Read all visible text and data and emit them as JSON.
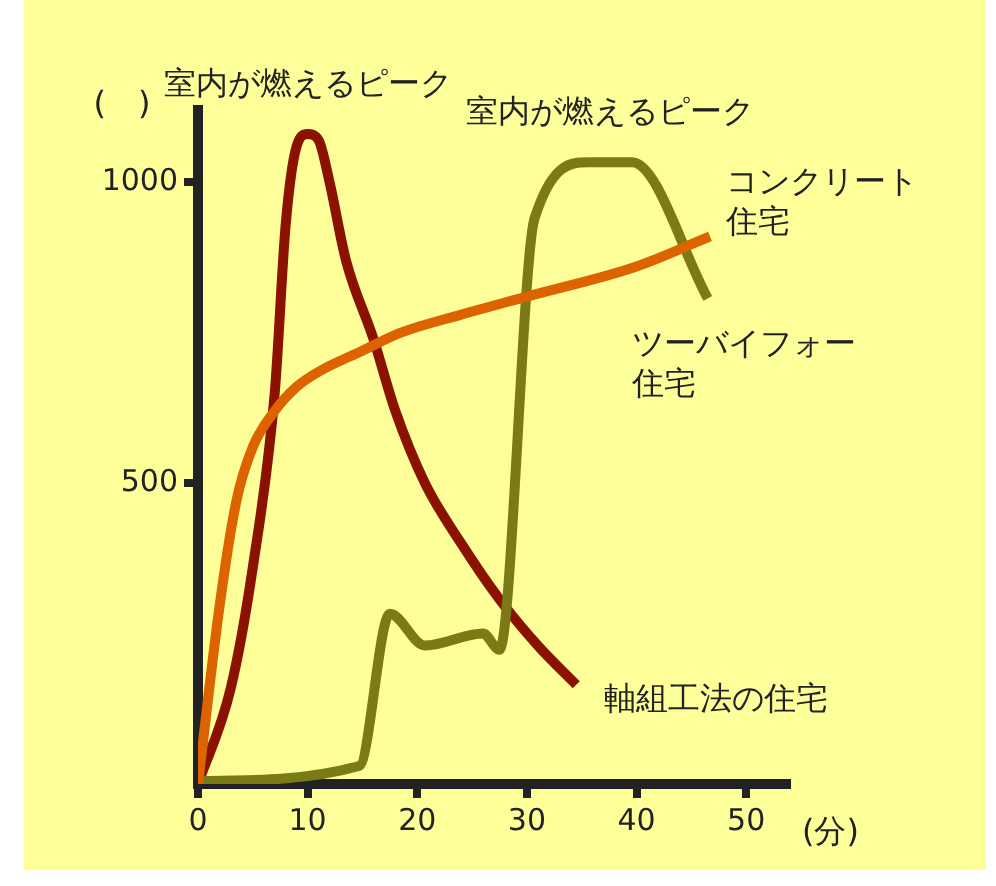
{
  "chart_data": {
    "type": "line",
    "xlabel": "(分)",
    "ylabel": "(　)",
    "xlim": [
      0,
      54
    ],
    "xticks": [
      0,
      10,
      20,
      30,
      40,
      50
    ],
    "ylim": [
      0,
      1120
    ],
    "yticks": [
      500,
      1000
    ],
    "grid": false,
    "legend": false,
    "marker": "none",
    "line_style": "solid",
    "series": [
      {
        "name": "コンクリート住宅",
        "color": "#dd6200",
        "x": [
          0,
          2,
          3.5,
          5,
          7,
          9,
          11,
          15,
          18.5,
          24,
          30,
          40,
          46.7
        ],
        "values": [
          0,
          300,
          470,
          560,
          620,
          660,
          685,
          720,
          750,
          780,
          810,
          860,
          910
        ]
      },
      {
        "name": "ツーバイフォー住宅",
        "color": "#7a7a16",
        "x": [
          0,
          14.7,
          17.5,
          20.7,
          26,
          27.5,
          30.7,
          35.6,
          39.6,
          46.5
        ],
        "values": [
          5,
          30,
          283,
          230,
          250,
          223,
          940,
          1033,
          1033,
          807
        ]
      },
      {
        "name": "軸組工法の住宅",
        "color": "#8b1200",
        "x": [
          0,
          3,
          5,
          7,
          8,
          9,
          10,
          11,
          12,
          13.5,
          16,
          18,
          20.7,
          24,
          27.5,
          31,
          34.5
        ],
        "values": [
          0,
          160,
          360,
          650,
          930,
          1060,
          1080,
          1070,
          1000,
          870,
          740,
          620,
          500,
          400,
          307,
          230,
          165
        ]
      }
    ],
    "annotations": [
      {
        "text": "室内が燃えるピーク",
        "x": 10,
        "y": 1080
      },
      {
        "text": "室内が燃えるピーク",
        "x": 37.6,
        "y": 1033
      }
    ]
  }
}
